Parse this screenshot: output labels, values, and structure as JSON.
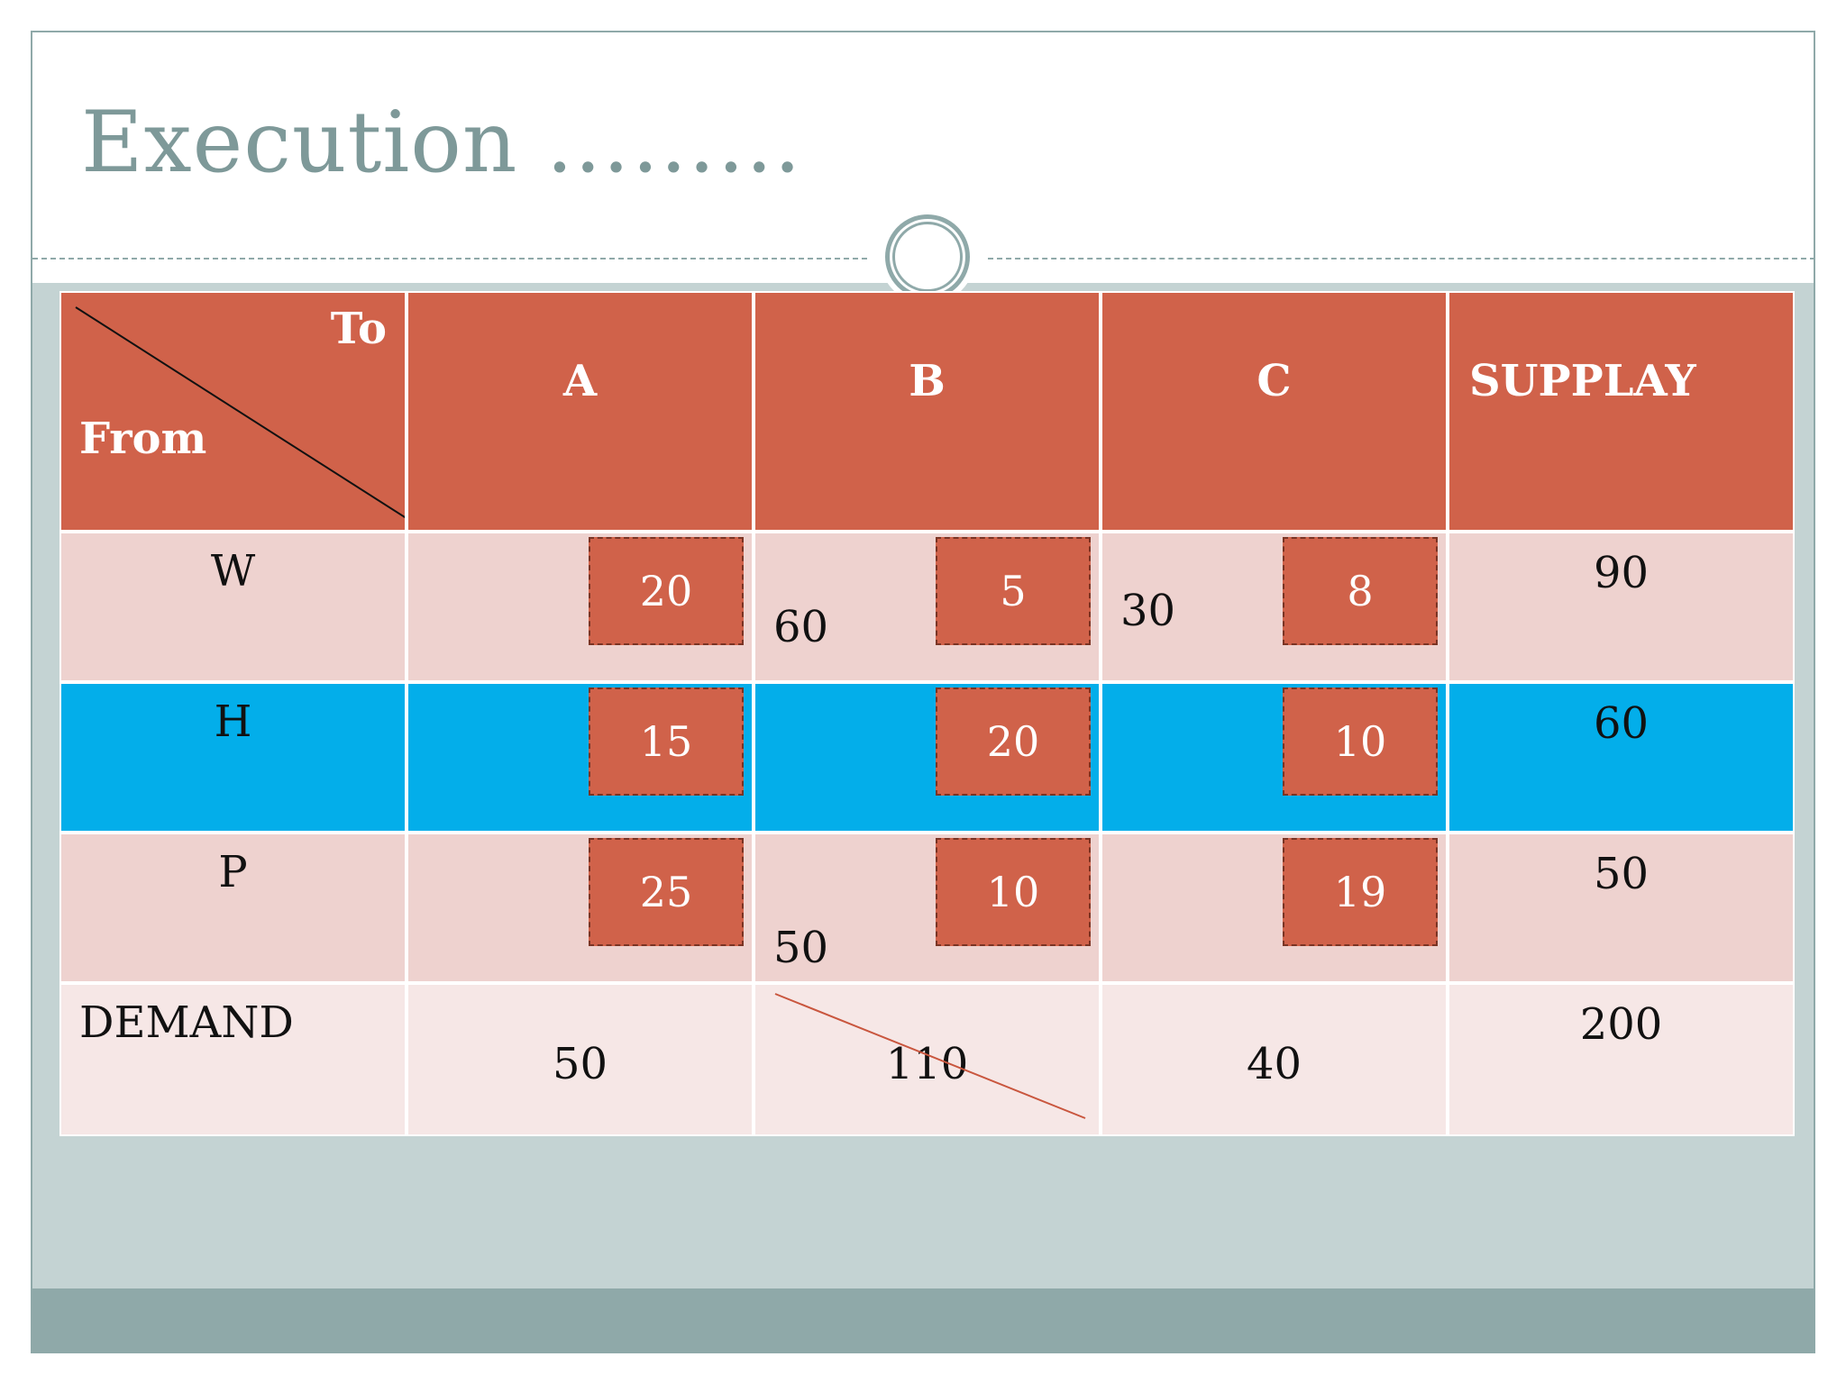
{
  "slide": {
    "title": "Execution ………"
  },
  "table": {
    "corner": {
      "to": "To",
      "from": "From"
    },
    "headers": [
      "A",
      "B",
      "C",
      "SUPPLAY"
    ],
    "rows": [
      {
        "label": "W",
        "costs": [
          "20",
          "5",
          "8"
        ],
        "allocations": [
          "",
          "60",
          "30"
        ],
        "supply": "90"
      },
      {
        "label": "H",
        "costs": [
          "15",
          "20",
          "10"
        ],
        "allocations": [
          "",
          "",
          ""
        ],
        "supply": "60"
      },
      {
        "label": "P",
        "costs": [
          "25",
          "10",
          "19"
        ],
        "allocations": [
          "",
          "50",
          ""
        ],
        "supply": "50"
      }
    ],
    "demand": {
      "label": "DEMAND",
      "values": [
        "50",
        "110",
        "40"
      ],
      "total": "200",
      "crossed_out": "110"
    }
  },
  "colors": {
    "header": "#d0624a",
    "row_light": "#eed2cf",
    "row_highlight": "#03aeea",
    "row_demand": "#f6e7e6",
    "title": "#7e9999",
    "background": "#c4d3d3"
  }
}
